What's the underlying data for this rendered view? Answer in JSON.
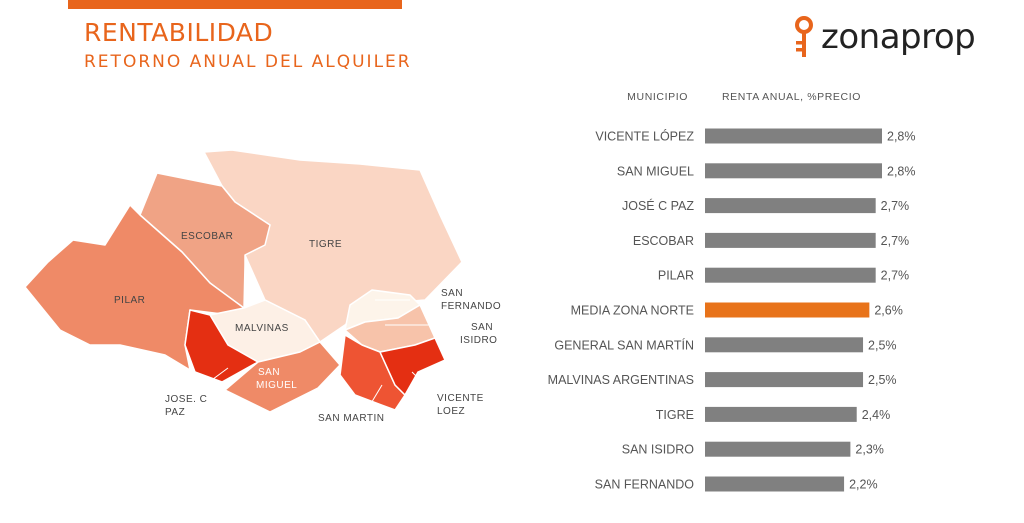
{
  "header": {
    "title": "RENTABILIDAD",
    "subtitle": "RETORNO ANUAL DEL ALQUILER"
  },
  "logo": {
    "text": "zonaprop",
    "icon": "key-icon",
    "color": "#e8651c"
  },
  "map": {
    "labels": {
      "escobar": "ESCOBAR",
      "tigre": "TIGRE",
      "pilar": "PILAR",
      "malvinas": "MALVINAS",
      "san_fernando_1": "SAN",
      "san_fernando_2": "FERNANDO",
      "san_isidro_1": "SAN",
      "san_isidro_2": "ISIDRO",
      "san_miguel_1": "SAN",
      "san_miguel_2": "MIGUEL",
      "jose_c_paz_1": "JOSE. C",
      "jose_c_paz_2": "PAZ",
      "san_martin": "SAN MARTIN",
      "vicente_lopez_1": "VICENTE",
      "vicente_lopez_2": "LOEZ"
    },
    "colors": {
      "escobar": "#f0a385",
      "tigre": "#fad6c4",
      "pilar": "#ef8a67",
      "malvinas": "#fdf0e6",
      "san_fernando": "#fdf4ea",
      "san_isidro": "#f7c3aa",
      "san_miguel": "#ef8a67",
      "jose_c_paz": "#e42f12",
      "san_martin": "#ee5433",
      "vicente_lopez": "#e42f12"
    }
  },
  "chart_data": {
    "type": "bar",
    "orientation": "horizontal",
    "category_header": "MUNICIPIO",
    "value_header": "RENTA ANUAL, %PRECIO",
    "categories": [
      "VICENTE LÓPEZ",
      "SAN MIGUEL",
      "JOSÉ C PAZ",
      "ESCOBAR",
      "PILAR",
      "MEDIA ZONA NORTE",
      "GENERAL SAN MARTÍN",
      "MALVINAS ARGENTINAS",
      "TIGRE",
      "SAN ISIDRO",
      "SAN FERNANDO"
    ],
    "values": [
      2.8,
      2.8,
      2.7,
      2.7,
      2.7,
      2.6,
      2.5,
      2.5,
      2.4,
      2.3,
      2.2
    ],
    "value_labels": [
      "2,8%",
      "2,8%",
      "2,7%",
      "2,7%",
      "2,7%",
      "2,6%",
      "2,5%",
      "2,5%",
      "2,4%",
      "2,3%",
      "2,2%"
    ],
    "highlight_index": 5,
    "bar_color": "#808080",
    "highlight_color": "#e8731a"
  }
}
